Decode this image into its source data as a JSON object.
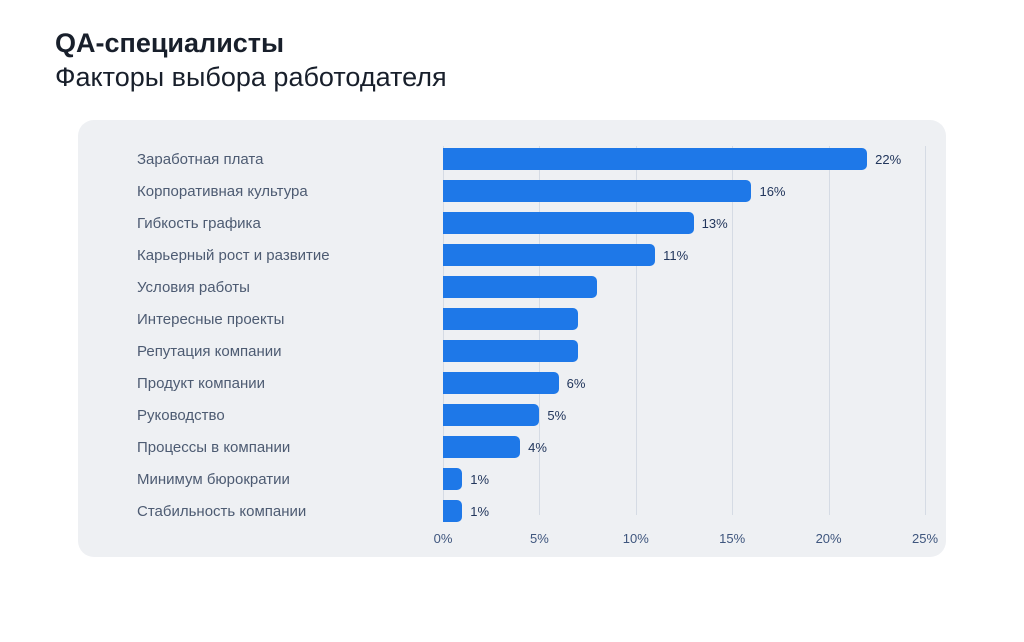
{
  "page": {
    "title_line1": "QA-специалисты",
    "title_line2": "Факторы выбора работодателя"
  },
  "chart_data": {
    "type": "bar",
    "orientation": "horizontal",
    "title": "QA-специалисты",
    "subtitle": "Факторы выбора работодателя",
    "categories": [
      "Заработная плата",
      "Корпоративная культура",
      "Гибкость графика",
      "Карьерный рост и развитие",
      "Условия работы",
      "Интересные проекты",
      "Репутация компании",
      "Продукт компании",
      "Руководство",
      "Процессы в компании",
      "Минимум бюрократии",
      "Стабильность компании"
    ],
    "values": [
      22,
      16,
      13,
      11,
      8,
      7,
      7,
      6,
      5,
      4,
      1,
      1
    ],
    "value_labels": [
      "22%",
      "16%",
      "13%",
      "11%",
      "",
      "",
      "",
      "6%",
      "5%",
      "4%",
      "1%",
      "1%"
    ],
    "xlabel": "",
    "ylabel": "",
    "xlim": [
      0,
      25
    ],
    "tick_values": [
      0,
      5,
      10,
      15,
      20,
      25
    ],
    "tick_labels": [
      "0%",
      "5%",
      "10%",
      "15%",
      "20%",
      "25%"
    ],
    "grid": "vertical",
    "legend": "none",
    "colors": {
      "page_bg": "#FFFFFF",
      "title": "#181F2B",
      "card_bg": "#EEF0F3",
      "bar": "#1E78E8",
      "grid_line": "#D5DBE4",
      "category_label": "#4D5B72",
      "value_label": "#22365C",
      "tick_label": "#3F567E"
    }
  }
}
